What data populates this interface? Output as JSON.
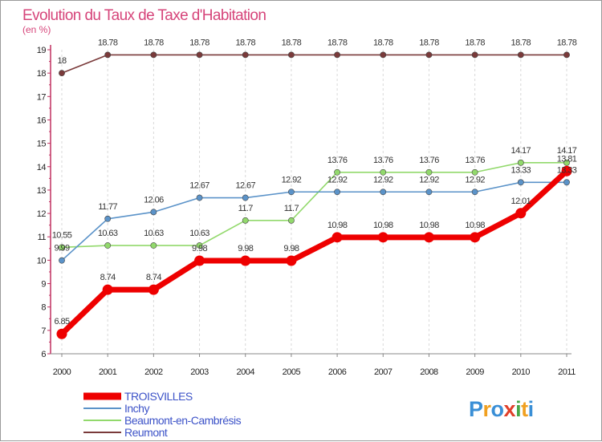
{
  "chart_data": {
    "type": "line",
    "title": "Evolution du Taux de Taxe d'Habitation",
    "subtitle": "(en %)",
    "x": [
      "2000",
      "2001",
      "2002",
      "2003",
      "2004",
      "2005",
      "2006",
      "2007",
      "2008",
      "2009",
      "2010",
      "2011"
    ],
    "ylim": [
      6,
      19
    ],
    "yticks": [
      6,
      7,
      8,
      9,
      10,
      11,
      12,
      13,
      14,
      15,
      16,
      17,
      18,
      19
    ],
    "grid": "dashed vertical",
    "legend_position": "bottom-left",
    "series": [
      {
        "name": "TROISVILLES",
        "color": "#ee0000",
        "values": [
          6.85,
          8.74,
          8.74,
          9.98,
          9.98,
          9.98,
          10.98,
          10.98,
          10.98,
          10.98,
          12.01,
          13.81
        ],
        "labels": [
          "6.85",
          "8.74",
          "8.74",
          "9.98",
          "9.98",
          "9.98",
          "10.98",
          "10.98",
          "10.98",
          "10.98",
          "12.01",
          "13.81"
        ]
      },
      {
        "name": "Inchy",
        "color": "#5b93c9",
        "values": [
          9.99,
          11.77,
          12.06,
          12.67,
          12.67,
          12.92,
          12.92,
          12.92,
          12.92,
          12.92,
          13.33,
          13.33
        ],
        "labels": [
          "9.99",
          "11.77",
          "12.06",
          "12.67",
          "12.67",
          "12.92",
          "12.92",
          "12.92",
          "12.92",
          "12.92",
          "13.33",
          "13.33"
        ]
      },
      {
        "name": "Beaumont-en-Cambrésis",
        "color": "#92d96c",
        "values": [
          10.55,
          10.63,
          10.63,
          10.63,
          11.7,
          11.7,
          13.76,
          13.76,
          13.76,
          13.76,
          14.17,
          14.17
        ],
        "labels": [
          "10.55",
          "10.63",
          "10.63",
          "10.63",
          "11.7",
          "11.7",
          "13.76",
          "13.76",
          "13.76",
          "13.76",
          "14.17",
          "14.17"
        ]
      },
      {
        "name": "Reumont",
        "color": "#7a3a3a",
        "values": [
          18,
          18.78,
          18.78,
          18.78,
          18.78,
          18.78,
          18.78,
          18.78,
          18.78,
          18.78,
          18.78,
          18.78
        ],
        "labels": [
          "18",
          "18.78",
          "18.78",
          "18.78",
          "18.78",
          "18.78",
          "18.78",
          "18.78",
          "18.78",
          "18.78",
          "18.78",
          "18.78"
        ]
      }
    ]
  },
  "brand": {
    "letters": [
      "P",
      "r",
      "o",
      "x",
      "i",
      "t",
      "i"
    ],
    "colors": [
      "#3a8fd6",
      "#f0a020",
      "#3a8fd6",
      "#e0402a",
      "#48a848",
      "#f0a020",
      "#3a8fd6"
    ]
  }
}
